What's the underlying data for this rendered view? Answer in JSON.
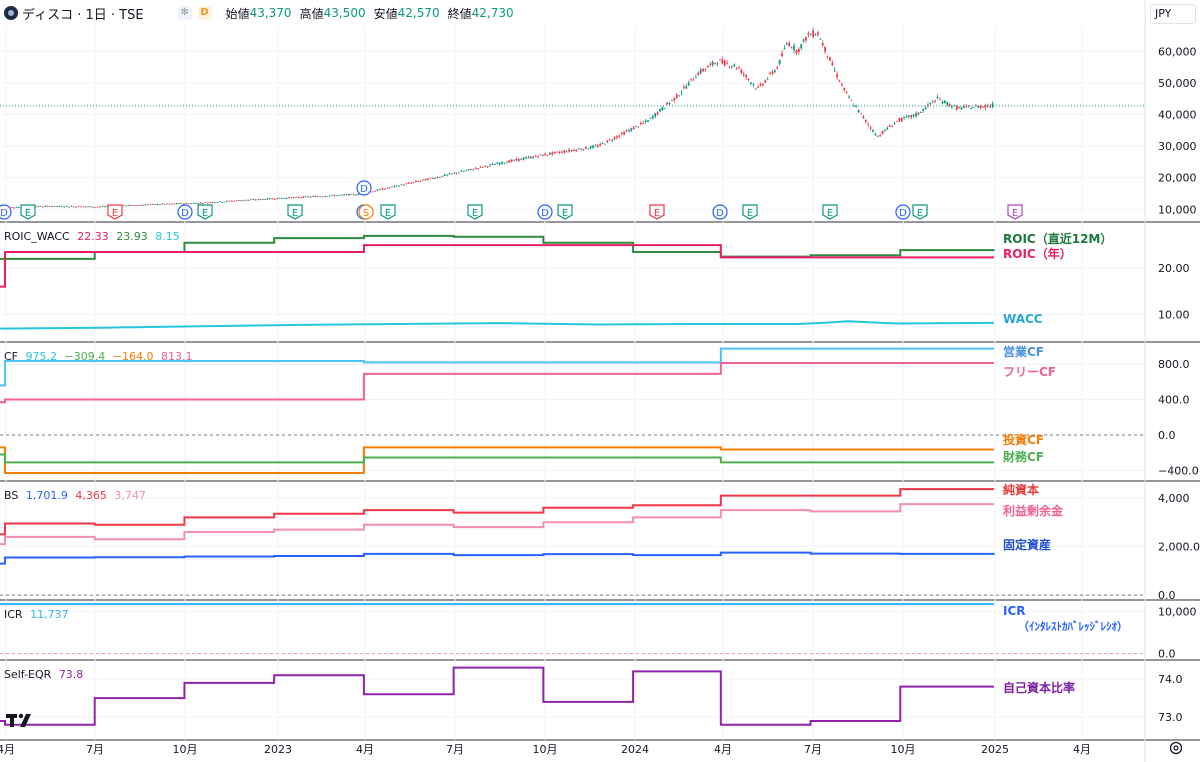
{
  "header": {
    "title": "ディスコ · 1日 · TSE",
    "gear_icon": "snowflake-icon",
    "d_chip": "D",
    "open_label": "始値",
    "open": "43,370",
    "high_label": "高値",
    "high": "43,500",
    "low_label": "安値",
    "low": "42,570",
    "close_label": "終値",
    "close": "42,730",
    "currency": "JPY"
  },
  "x_axis_labels": [
    "4月",
    "7月",
    "10月",
    "2023",
    "4月",
    "7月",
    "10月",
    "2024",
    "4月",
    "7月",
    "10月",
    "2025",
    "4月"
  ],
  "colors": {
    "up": "#089981",
    "down": "#f23645",
    "roic12": "#2e8b3e",
    "roicY": "#e91e63",
    "wacc": "#26c6da",
    "opcf": "#4fc3f7",
    "freecf": "#f06292",
    "invcf": "#f57c00",
    "fincf": "#4caf50",
    "equity": "#f23645",
    "retained": "#f48fb1",
    "fixed": "#2962ff",
    "icr": "#29b6f6",
    "eqr": "#8e24aa",
    "label_icr": "#2962ff",
    "label_roic12": "#1b7a3a",
    "label_roicY": "#e91e63",
    "label_wacc": "#26a6da",
    "label_opcf": "#4a8fe0",
    "label_freecf": "#f06292",
    "label_invcf": "#f57c00",
    "label_fincf": "#4caf50",
    "label_equity": "#e53935",
    "label_retained": "#f06292",
    "label_fixed": "#1e4fd1",
    "label_eqr": "#7b1fa2"
  },
  "chart_data": [
    {
      "type": "line",
      "name": "price",
      "y_ticks": [
        "60,000",
        "50,000",
        "40,000",
        "30,000",
        "20,000",
        "10,000"
      ],
      "ylim": [
        6000,
        68000
      ],
      "x_range": [
        0,
        1000
      ],
      "x": [
        0,
        50,
        100,
        150,
        200,
        250,
        300,
        360,
        400,
        450,
        500,
        550,
        600,
        650,
        680,
        700,
        720,
        740,
        760,
        780,
        790,
        800,
        810,
        820,
        830,
        840,
        850,
        880,
        900,
        920,
        940,
        960,
        1000
      ],
      "values": [
        10500,
        11000,
        10800,
        11500,
        12000,
        13000,
        13800,
        14800,
        17500,
        21000,
        24500,
        27500,
        30000,
        38000,
        46000,
        53000,
        57000,
        55000,
        48000,
        55000,
        63000,
        60000,
        65000,
        66000,
        59000,
        52000,
        46000,
        33000,
        38000,
        40000,
        45000,
        42000,
        43000
      ],
      "events": {
        "x": [
          4,
          28,
          115,
          185,
          205,
          295,
          364,
          366,
          388,
          475,
          545,
          565,
          657,
          720,
          750,
          830,
          903,
          920,
          1015
        ],
        "letters": [
          "D",
          "E",
          "E",
          "D",
          "E",
          "E",
          "D",
          "S",
          "E",
          "E",
          "D",
          "E",
          "E",
          "D",
          "E",
          "E",
          "D",
          "E",
          "E"
        ]
      }
    },
    {
      "type": "line",
      "name": "ROIC_WACC",
      "legend_values": [
        "22.33",
        "23.93",
        "8.15"
      ],
      "y_ticks": [
        "20.00",
        "10.00"
      ],
      "series": [
        {
          "name": "ROIC（直近12M）",
          "label": "ROIC（直近12M）",
          "x": [
            0,
            5,
            95,
            185,
            275,
            365,
            455,
            545,
            635,
            723,
            813,
            903,
            997
          ],
          "values": [
            22,
            22,
            23.5,
            25.5,
            26.5,
            27,
            26.8,
            25.5,
            23.5,
            22.5,
            22.8,
            23.9,
            23.93
          ]
        },
        {
          "name": "ROIC（年）",
          "label": "ROIC（年）",
          "x": [
            0,
            5,
            365,
            723,
            997
          ],
          "values": [
            16,
            23.5,
            25,
            22.33,
            22.33
          ]
        },
        {
          "name": "WACC",
          "label": "WACC",
          "x": [
            0,
            100,
            200,
            300,
            400,
            500,
            600,
            700,
            800,
            830,
            850,
            900,
            997
          ],
          "values": [
            6.9,
            7.1,
            7.4,
            7.7,
            7.9,
            8.1,
            7.8,
            7.9,
            7.9,
            8.2,
            8.5,
            8.0,
            8.15
          ]
        }
      ]
    },
    {
      "type": "line",
      "name": "CF",
      "legend_values": [
        "975.2",
        "−309.4",
        "−164.0",
        "813.1"
      ],
      "y_ticks": [
        "800.0",
        "400.0",
        "0.0",
        "−400.0"
      ],
      "series": [
        {
          "name": "営業CF",
          "label": "営業CF",
          "x": [
            0,
            5,
            365,
            723,
            997
          ],
          "values": [
            560,
            835,
            820,
            975,
            975
          ]
        },
        {
          "name": "フリーCF",
          "label": "フリーCF",
          "x": [
            0,
            5,
            365,
            723,
            997
          ],
          "values": [
            370,
            400,
            690,
            813,
            813
          ]
        },
        {
          "name": "投資CF",
          "label": "投資CF",
          "x": [
            0,
            5,
            365,
            723,
            997
          ],
          "values": [
            -140,
            -430,
            -140,
            -164,
            -164
          ]
        },
        {
          "name": "財務CF",
          "label": "財務CF",
          "x": [
            0,
            5,
            365,
            723,
            997
          ],
          "values": [
            -220,
            -310,
            -255,
            -309,
            -309
          ]
        }
      ]
    },
    {
      "type": "line",
      "name": "BS",
      "legend_values": [
        "1,701.9",
        "4,365",
        "3,747"
      ],
      "y_ticks": [
        "4,000",
        "2,000.0",
        "0.0"
      ],
      "series": [
        {
          "name": "純資本",
          "label": "純資本",
          "x": [
            0,
            5,
            95,
            185,
            275,
            365,
            455,
            545,
            635,
            723,
            813,
            903,
            997
          ],
          "values": [
            2500,
            2950,
            2900,
            3200,
            3350,
            3500,
            3400,
            3600,
            3700,
            4100,
            4100,
            4365,
            4365
          ]
        },
        {
          "name": "利益剰余金",
          "label": "利益剰余金",
          "x": [
            0,
            5,
            95,
            185,
            275,
            365,
            455,
            545,
            635,
            723,
            813,
            903,
            997
          ],
          "values": [
            2100,
            2400,
            2300,
            2600,
            2700,
            2900,
            2800,
            3000,
            3200,
            3500,
            3450,
            3747,
            3747
          ]
        },
        {
          "name": "固定資産",
          "label": "固定資産",
          "x": [
            0,
            5,
            95,
            185,
            275,
            365,
            455,
            545,
            635,
            723,
            813,
            903,
            997
          ],
          "values": [
            1300,
            1550,
            1560,
            1590,
            1610,
            1700,
            1650,
            1690,
            1650,
            1750,
            1710,
            1700,
            1702
          ]
        }
      ]
    },
    {
      "type": "line",
      "name": "ICR",
      "legend_values": [
        "11,737"
      ],
      "y_ticks": [
        "10,000",
        "0.0"
      ],
      "series": [
        {
          "name": "ICR",
          "label": "ICR",
          "label2": "（ｲﾝﾀﾚｽﾄｶﾊﾞﾚｯｼﾞﾚｼｵ）",
          "x": [
            0,
            997
          ],
          "values": [
            11737,
            11737
          ]
        }
      ]
    },
    {
      "type": "line",
      "name": "Self-EQR",
      "legend_values": [
        "73.8"
      ],
      "y_ticks": [
        "74.0",
        "73.0"
      ],
      "series": [
        {
          "name": "自己資本比率",
          "label": "自己資本比率",
          "x": [
            0,
            5,
            95,
            185,
            275,
            365,
            455,
            545,
            635,
            723,
            813,
            903,
            997
          ],
          "values": [
            72.9,
            72.8,
            73.5,
            73.9,
            74.1,
            73.6,
            74.3,
            73.4,
            74.2,
            72.8,
            72.9,
            73.8,
            73.8
          ]
        }
      ]
    }
  ]
}
